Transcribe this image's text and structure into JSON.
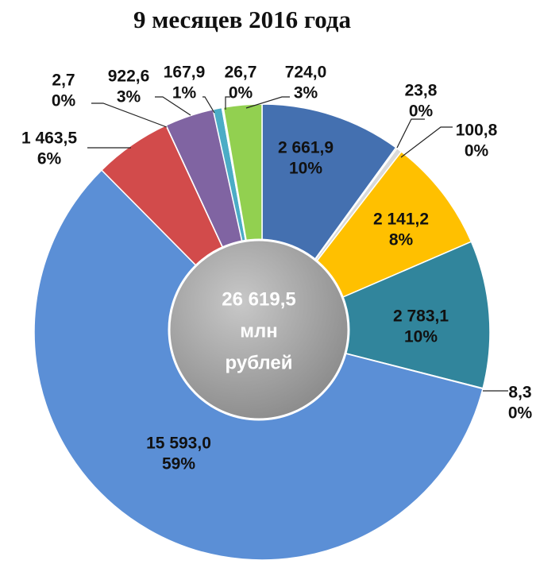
{
  "chart_data": {
    "type": "pie",
    "title": "9 месяцев 2016 года",
    "values": [
      2661.9,
      23.8,
      100.8,
      2141.2,
      2783.1,
      8.3,
      15593.0,
      1463.5,
      2.7,
      922.6,
      167.9,
      26.7,
      724.0
    ],
    "value_labels": [
      "2 661,9",
      "23,8",
      "100,8",
      "2 141,2",
      "2 783,1",
      "8,3",
      "15 593,0",
      "1 463,5",
      "2,7",
      "922,6",
      "167,9",
      "26,7",
      "724,0"
    ],
    "percent_labels": [
      "10%",
      "0%",
      "0%",
      "8%",
      "10%",
      "0%",
      "59%",
      "6%",
      "0%",
      "3%",
      "1%",
      "0%",
      "3%"
    ],
    "colors": [
      "#4470b0",
      "#4f7a28",
      "#d9d9d9",
      "#ffc000",
      "#31859c",
      "#8db3e2",
      "#5b8fd6",
      "#d24b4b",
      "#ff9900",
      "#8064a2",
      "#4bacc6",
      "#ffffff",
      "#92d050"
    ],
    "center_text": [
      "26 619,5",
      "млн",
      "рублей"
    ]
  }
}
